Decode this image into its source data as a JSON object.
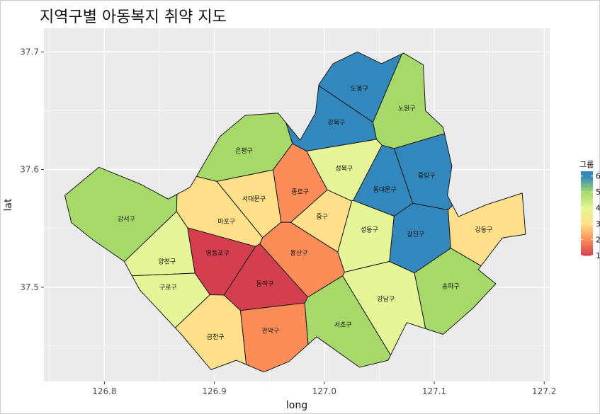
{
  "chart_data": {
    "type": "heatmap",
    "title": "지역구별 아동복지 취약 지도",
    "xlabel": "long",
    "ylabel": "lat",
    "xlim": [
      126.745,
      127.205
    ],
    "ylim": [
      37.42,
      37.72
    ],
    "xticks": [
      126.8,
      126.9,
      127.0,
      127.1,
      127.2
    ],
    "xtick_labels": [
      "126.8",
      "126.9",
      "127.0",
      "127.1",
      "127.2"
    ],
    "yticks": [
      37.5,
      37.6,
      37.7
    ],
    "ytick_labels": [
      "37.5",
      "37.6",
      "37.7"
    ],
    "grid": true,
    "legend": {
      "title": "그룹",
      "placement": "right",
      "min": 1,
      "max": 6.3,
      "breaks": [
        1,
        2,
        3,
        4,
        5,
        6
      ],
      "break_labels": [
        "1",
        "2",
        "3",
        "4",
        "5",
        "6"
      ]
    },
    "colors": {
      "1": "#d53e4f",
      "2": "#fc8d59",
      "3": "#fee08b",
      "4": "#e6f598",
      "5": "#a6d96a",
      "6": "#3288bd",
      "panel": "#ebebeb",
      "gridline": "#ffffff"
    },
    "districts": [
      {
        "name": "도봉구",
        "group": 6,
        "long": 127.032,
        "lat": 37.669
      },
      {
        "name": "노원구",
        "group": 5,
        "long": 127.075,
        "lat": 37.652
      },
      {
        "name": "강북구",
        "group": 6,
        "long": 127.011,
        "lat": 37.64
      },
      {
        "name": "은평구",
        "group": 5,
        "long": 126.927,
        "lat": 37.616
      },
      {
        "name": "성북구",
        "group": 4,
        "long": 127.018,
        "lat": 37.601
      },
      {
        "name": "중랑구",
        "group": 6,
        "long": 127.093,
        "lat": 37.595
      },
      {
        "name": "종로구",
        "group": 2,
        "long": 126.978,
        "lat": 37.581
      },
      {
        "name": "동대문구",
        "group": 6,
        "long": 127.055,
        "lat": 37.583
      },
      {
        "name": "서대문구",
        "group": 3,
        "long": 126.936,
        "lat": 37.575
      },
      {
        "name": "강서구",
        "group": 5,
        "long": 126.82,
        "lat": 37.558
      },
      {
        "name": "마포구",
        "group": 3,
        "long": 126.911,
        "lat": 37.556
      },
      {
        "name": "중구",
        "group": 3,
        "long": 126.998,
        "lat": 37.56
      },
      {
        "name": "성동구",
        "group": 4,
        "long": 127.041,
        "lat": 37.549
      },
      {
        "name": "광진구",
        "group": 6,
        "long": 127.083,
        "lat": 37.545
      },
      {
        "name": "강동구",
        "group": 3,
        "long": 127.145,
        "lat": 37.549
      },
      {
        "name": "영등포구",
        "group": 1,
        "long": 126.903,
        "lat": 37.529
      },
      {
        "name": "용산구",
        "group": 2,
        "long": 126.977,
        "lat": 37.529
      },
      {
        "name": "양천구",
        "group": 4,
        "long": 126.857,
        "lat": 37.522
      },
      {
        "name": "동작구",
        "group": 1,
        "long": 126.946,
        "lat": 37.503
      },
      {
        "name": "구로구",
        "group": 4,
        "long": 126.858,
        "lat": 37.5
      },
      {
        "name": "송파구",
        "group": 5,
        "long": 127.115,
        "lat": 37.501
      },
      {
        "name": "강남구",
        "group": 4,
        "long": 127.056,
        "lat": 37.49
      },
      {
        "name": "서초구",
        "group": 5,
        "long": 127.017,
        "lat": 37.468
      },
      {
        "name": "관악구",
        "group": 2,
        "long": 126.951,
        "lat": 37.463
      },
      {
        "name": "금천구",
        "group": 3,
        "long": 126.901,
        "lat": 37.458
      }
    ]
  }
}
